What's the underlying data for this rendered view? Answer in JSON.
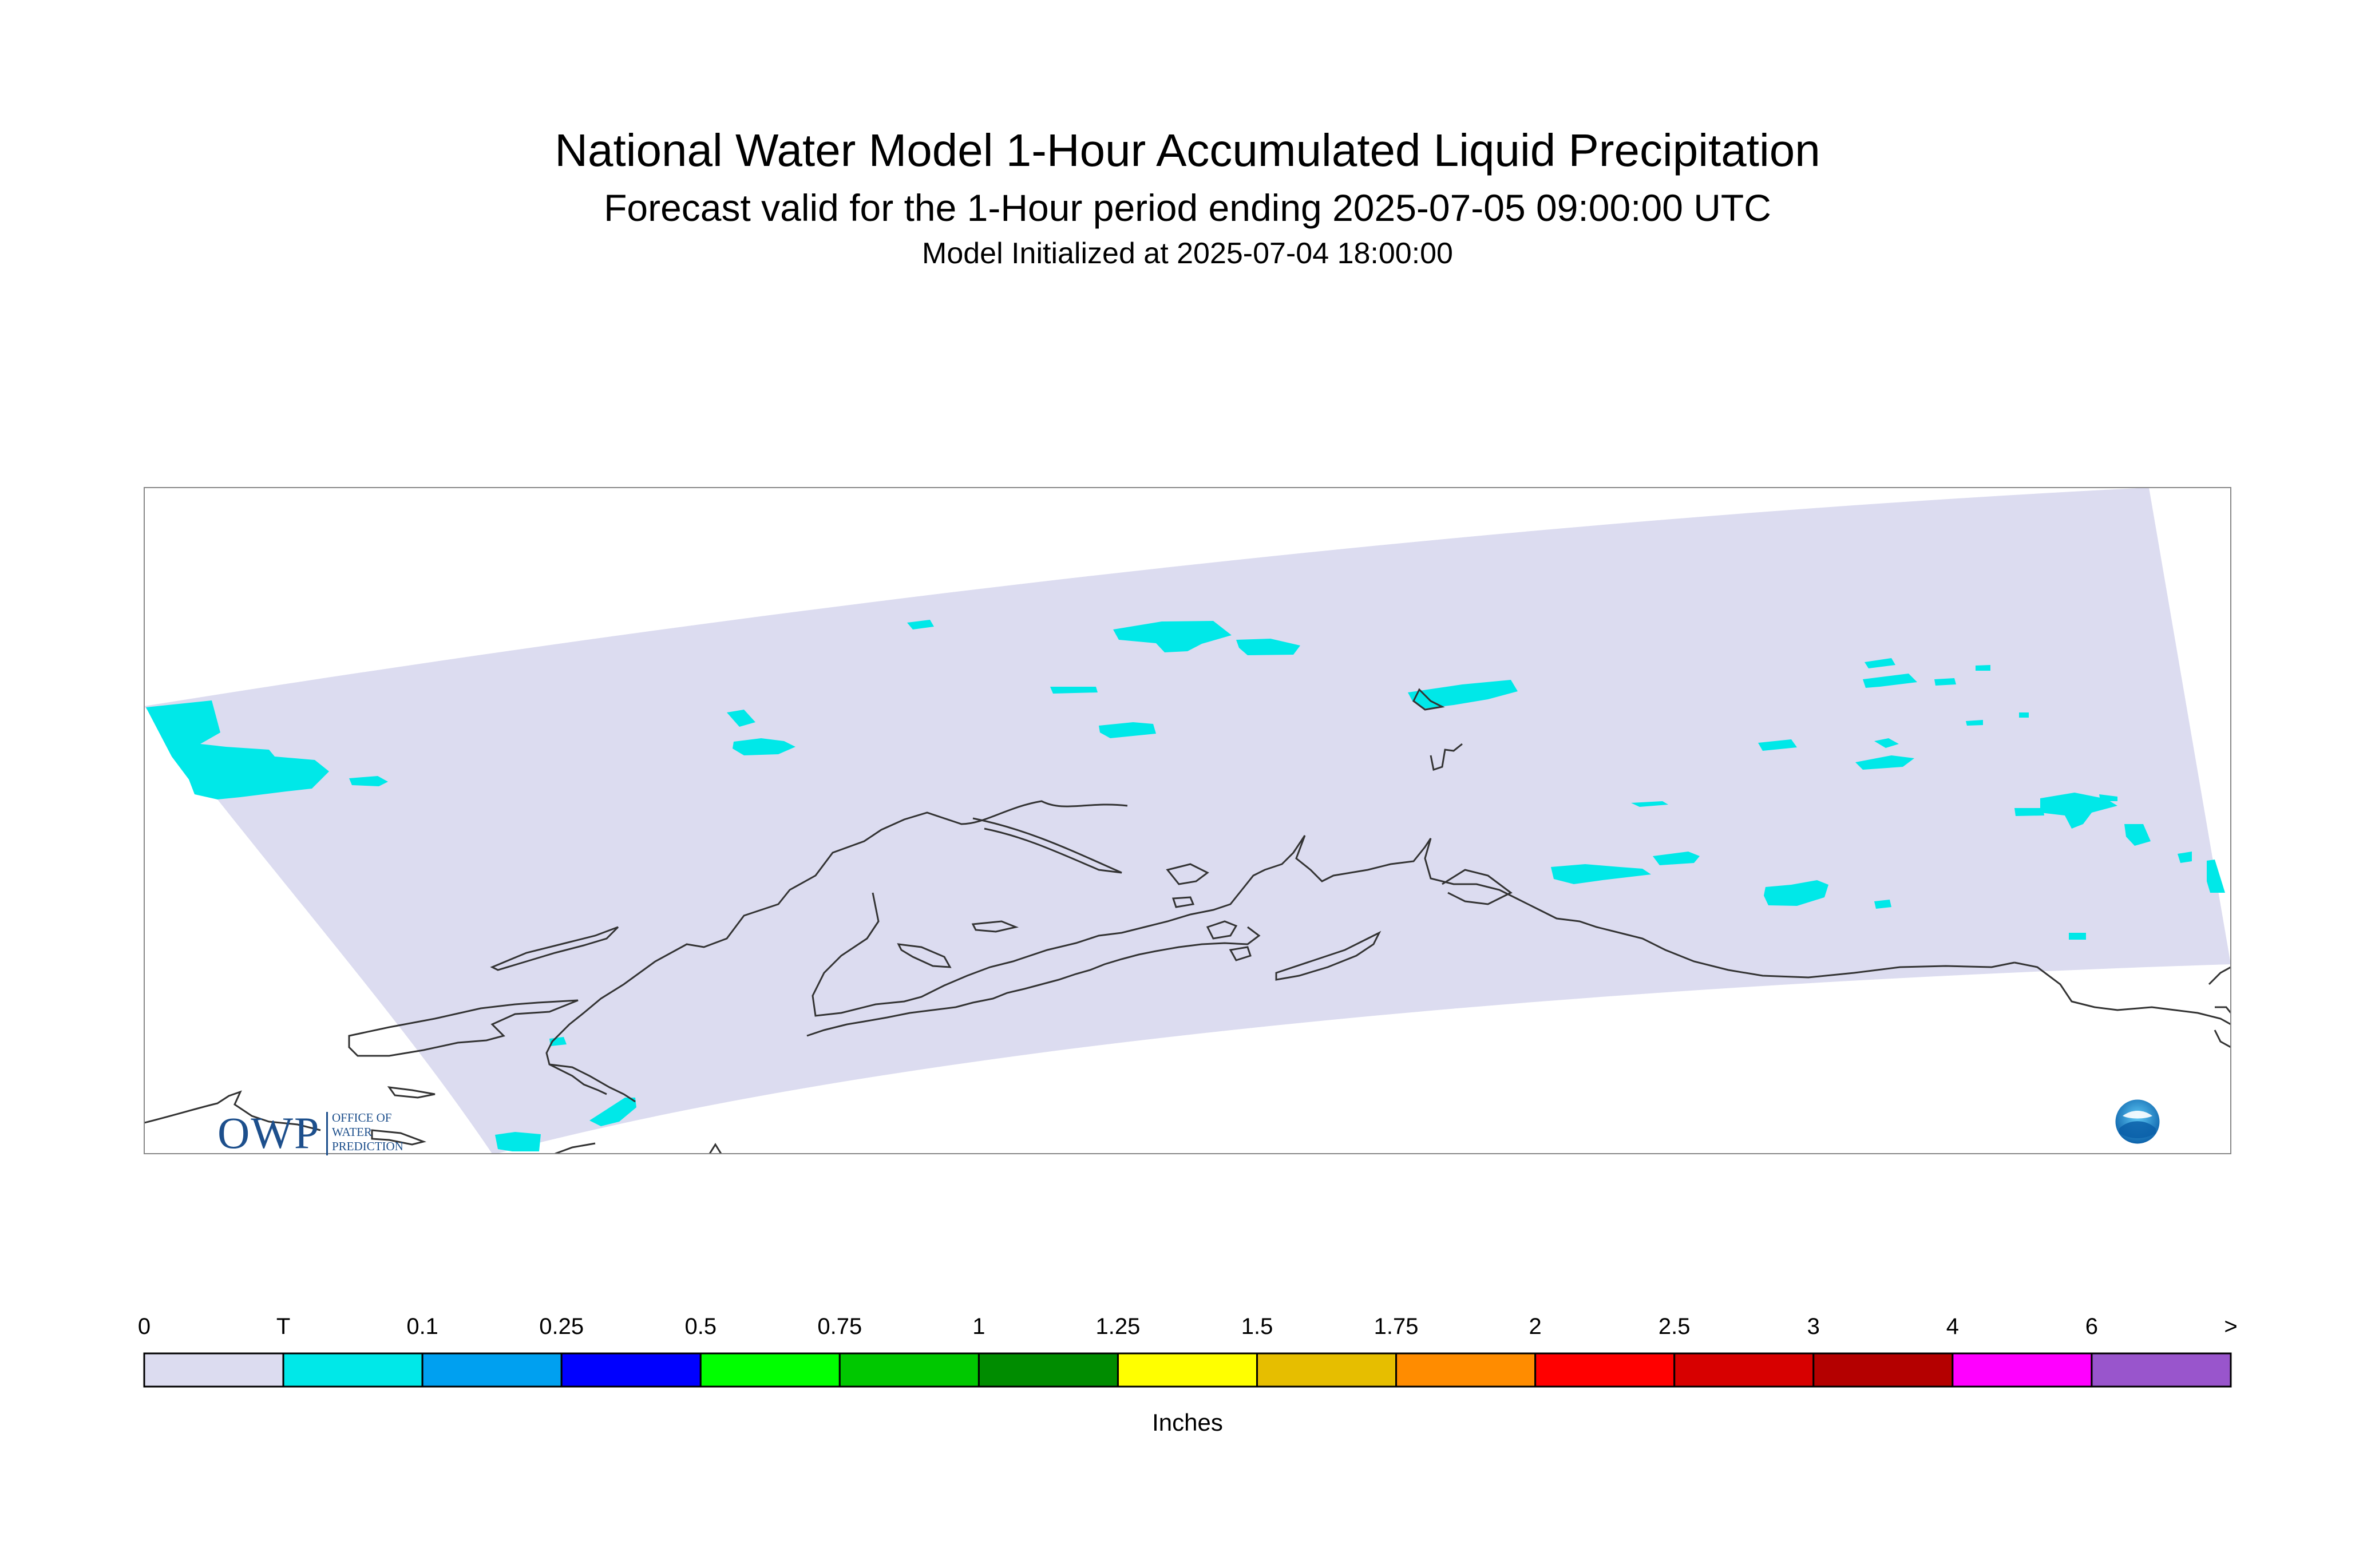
{
  "title": {
    "line1": "National Water Model 1-Hour Accumulated Liquid Precipitation",
    "line2": "Forecast valid for the 1-Hour period ending 2025-07-05 09:00:00 UTC",
    "line3": "Model Initialized at 2025-07-04 18:00:00"
  },
  "legend": {
    "units": "Inches",
    "labels": [
      "0",
      "T",
      "0.1",
      "0.25",
      "0.5",
      "0.75",
      "1",
      "1.25",
      "1.5",
      "1.75",
      "2",
      "2.5",
      "3",
      "4",
      "6",
      ">"
    ],
    "colors": [
      "#dcdcf0",
      "#00e8e8",
      "#00a0f0",
      "#0000ff",
      "#00ff00",
      "#00c800",
      "#008c00",
      "#ffff00",
      "#e6be00",
      "#ff8c00",
      "#ff0000",
      "#d70000",
      "#b40000",
      "#ff00ff",
      "#9955cc"
    ]
  },
  "colors": {
    "domain_fill": "#dcdcf0",
    "trace_precip": "#00e8e8",
    "coastline": "#333333",
    "frame": "#888888"
  },
  "logos": {
    "owp_big": "OWP",
    "owp_small_1": "OFFICE OF",
    "owp_small_2": "WATER",
    "owp_small_3": "PREDICTION",
    "noaa": "NOAA"
  }
}
